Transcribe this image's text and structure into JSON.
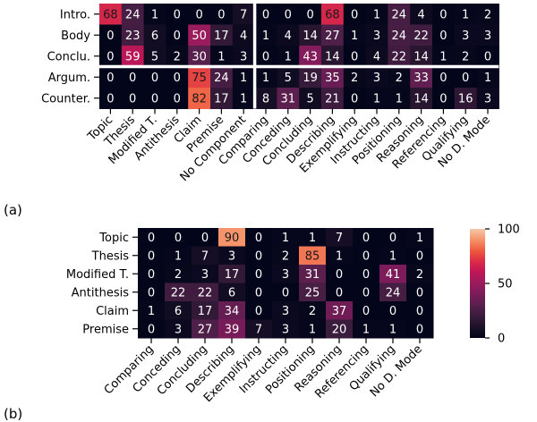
{
  "chart_data": [
    {
      "type": "heatmap",
      "panel_label": "(a)",
      "rows": [
        "Intro.",
        "Body",
        "Conclu.",
        "Argum.",
        "Counter."
      ],
      "columns": [
        "Topic",
        "Thesis",
        "Modified T.",
        "Antithesis",
        "Claim",
        "Premise",
        "No Component",
        "Comparing",
        "Conceding",
        "Concluding",
        "Describing",
        "Exemplifying",
        "Instructing",
        "Positioning",
        "Reasoning",
        "Referencing",
        "Qualifying",
        "No D. Mode"
      ],
      "values": [
        [
          68,
          24,
          1,
          0,
          0,
          0,
          7,
          0,
          0,
          0,
          68,
          0,
          1,
          24,
          4,
          0,
          1,
          2
        ],
        [
          0,
          23,
          6,
          0,
          50,
          17,
          4,
          1,
          4,
          14,
          27,
          1,
          3,
          24,
          22,
          0,
          3,
          3
        ],
        [
          0,
          59,
          5,
          2,
          30,
          1,
          3,
          0,
          1,
          43,
          14,
          0,
          4,
          22,
          14,
          1,
          2,
          0
        ],
        [
          0,
          0,
          0,
          0,
          75,
          24,
          1,
          1,
          5,
          19,
          35,
          2,
          3,
          2,
          33,
          0,
          0,
          1
        ],
        [
          0,
          0,
          0,
          0,
          82,
          17,
          1,
          8,
          31,
          5,
          21,
          0,
          1,
          1,
          14,
          0,
          16,
          3
        ]
      ],
      "vmin": 0,
      "vmax": 100,
      "colormap": "rocket"
    },
    {
      "type": "heatmap",
      "panel_label": "(b)",
      "rows": [
        "Topic",
        "Thesis",
        "Modified T.",
        "Antithesis",
        "Claim",
        "Premise"
      ],
      "columns": [
        "Comparing",
        "Conceding",
        "Concluding",
        "Describing",
        "Exemplifying",
        "Instructing",
        "Positioning",
        "Reasoning",
        "Referencing",
        "Qualifying",
        "No D. Mode"
      ],
      "values": [
        [
          0,
          0,
          0,
          90,
          0,
          1,
          1,
          7,
          0,
          0,
          1
        ],
        [
          0,
          1,
          7,
          3,
          0,
          2,
          85,
          1,
          0,
          1,
          0
        ],
        [
          0,
          2,
          3,
          17,
          0,
          3,
          31,
          0,
          0,
          41,
          2
        ],
        [
          0,
          22,
          22,
          6,
          0,
          0,
          25,
          0,
          0,
          24,
          0
        ],
        [
          1,
          6,
          17,
          34,
          0,
          3,
          2,
          37,
          0,
          0,
          0
        ],
        [
          0,
          3,
          27,
          39,
          7,
          3,
          1,
          20,
          1,
          1,
          0
        ]
      ],
      "vmin": 0,
      "vmax": 100,
      "colorbar_ticks": [
        0,
        50,
        100
      ],
      "colormap": "rocket"
    }
  ]
}
